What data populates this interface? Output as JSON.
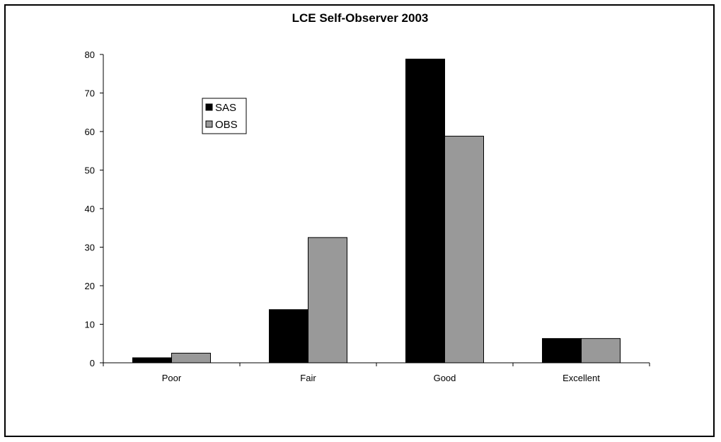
{
  "chart_data": {
    "type": "bar",
    "title": "LCE Self-Observer 2003",
    "xlabel": "",
    "ylabel": "",
    "categories": [
      "Poor",
      "Fair",
      "Good",
      "Excellent"
    ],
    "series": [
      {
        "name": "SAS",
        "color": "#000000",
        "values": [
          1.3,
          13.8,
          78.8,
          6.3
        ]
      },
      {
        "name": "OBS",
        "color": "#999999",
        "values": [
          2.5,
          32.5,
          58.8,
          6.3
        ]
      }
    ],
    "ylim": [
      0,
      80
    ],
    "yticks": [
      0,
      10,
      20,
      30,
      40,
      50,
      60,
      70,
      80
    ],
    "grid": false,
    "legend": "upper-left"
  }
}
